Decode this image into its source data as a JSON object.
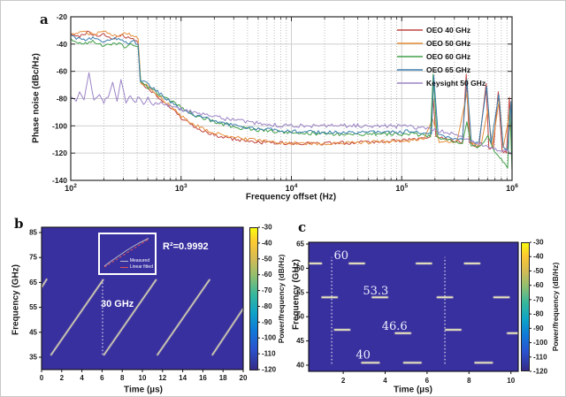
{
  "chart_data": [
    {
      "id": "a",
      "type": "line",
      "panel_label": "a",
      "xlabel": "Frequency offset (Hz)",
      "ylabel": "Phase noise (dBc/Hz)",
      "x_scale": "log",
      "xlim_log": [
        2,
        6
      ],
      "x_ticks_exp": [
        2,
        3,
        4,
        5,
        6
      ],
      "y_ticks": [
        -20,
        -40,
        -60,
        -80,
        -100,
        -120,
        -140
      ],
      "ylim": [
        -140,
        -20
      ],
      "grid": true,
      "legend_position": "top-right",
      "legend": [
        {
          "label": "OEO 40 GHz",
          "color": "#c0443f"
        },
        {
          "label": "OEO 50 GHz",
          "color": "#e78f3c"
        },
        {
          "label": "OEO 60 GHz",
          "color": "#41a048"
        },
        {
          "label": "OEO 65 GHz",
          "color": "#3c7fae"
        },
        {
          "label": "Keysight 50 GHz",
          "color": "#9c84c6"
        }
      ],
      "series": [
        {
          "name": "OEO 40 GHz",
          "color": "#c0443f",
          "noise": 1.3,
          "points": [
            [
              2.0,
              -33
            ],
            [
              2.08,
              -35
            ],
            [
              2.15,
              -31
            ],
            [
              2.22,
              -34
            ],
            [
              2.3,
              -33
            ],
            [
              2.38,
              -36
            ],
            [
              2.45,
              -33
            ],
            [
              2.52,
              -35
            ],
            [
              2.58,
              -37
            ],
            [
              2.61,
              -39
            ],
            [
              2.63,
              -67
            ],
            [
              2.7,
              -73
            ],
            [
              2.8,
              -79
            ],
            [
              2.9,
              -86
            ],
            [
              3.0,
              -94
            ],
            [
              3.1,
              -100
            ],
            [
              3.2,
              -104
            ],
            [
              3.35,
              -108
            ],
            [
              3.5,
              -110
            ],
            [
              3.7,
              -112
            ],
            [
              4.0,
              -113
            ],
            [
              4.3,
              -113
            ],
            [
              4.6,
              -112
            ],
            [
              4.9,
              -111
            ],
            [
              5.1,
              -110
            ],
            [
              5.2,
              -109
            ],
            [
              5.26,
              -108
            ],
            [
              5.285,
              -80
            ],
            [
              5.31,
              -108
            ],
            [
              5.45,
              -111
            ],
            [
              5.55,
              -112
            ],
            [
              5.585,
              -62
            ],
            [
              5.615,
              -113
            ],
            [
              5.7,
              -115
            ],
            [
              5.765,
              -69
            ],
            [
              5.79,
              -116
            ],
            [
              5.83,
              -117
            ],
            [
              5.875,
              -75
            ],
            [
              5.91,
              -118
            ],
            [
              5.95,
              -120
            ],
            [
              5.975,
              -79
            ],
            [
              6.0,
              -122
            ]
          ]
        },
        {
          "name": "OEO 50 GHz",
          "color": "#e78f3c",
          "noise": 1.3,
          "points": [
            [
              2.0,
              -33
            ],
            [
              2.1,
              -31
            ],
            [
              2.2,
              -33
            ],
            [
              2.3,
              -31
            ],
            [
              2.4,
              -34
            ],
            [
              2.5,
              -32
            ],
            [
              2.56,
              -34
            ],
            [
              2.61,
              -36
            ],
            [
              2.635,
              -68
            ],
            [
              2.72,
              -72
            ],
            [
              2.8,
              -78
            ],
            [
              2.9,
              -85
            ],
            [
              3.0,
              -93
            ],
            [
              3.12,
              -99
            ],
            [
              3.25,
              -104
            ],
            [
              3.4,
              -107
            ],
            [
              3.6,
              -110
            ],
            [
              3.8,
              -112
            ],
            [
              4.1,
              -113
            ],
            [
              4.4,
              -113
            ],
            [
              4.7,
              -112
            ],
            [
              5.0,
              -111
            ],
            [
              5.2,
              -110
            ],
            [
              5.28,
              -95
            ],
            [
              5.34,
              -111
            ],
            [
              5.5,
              -112
            ],
            [
              5.59,
              -76
            ],
            [
              5.63,
              -113
            ],
            [
              5.72,
              -114
            ],
            [
              5.78,
              -88
            ],
            [
              5.82,
              -115
            ],
            [
              5.885,
              -80
            ],
            [
              5.92,
              -116
            ],
            [
              5.975,
              -92
            ],
            [
              6.0,
              -117
            ]
          ]
        },
        {
          "name": "OEO 60 GHz",
          "color": "#41a048",
          "noise": 1.3,
          "points": [
            [
              2.0,
              -37
            ],
            [
              2.1,
              -40
            ],
            [
              2.2,
              -38
            ],
            [
              2.3,
              -41
            ],
            [
              2.4,
              -39
            ],
            [
              2.5,
              -42
            ],
            [
              2.56,
              -40
            ],
            [
              2.61,
              -42
            ],
            [
              2.635,
              -69
            ],
            [
              2.75,
              -74
            ],
            [
              2.85,
              -79
            ],
            [
              2.95,
              -84
            ],
            [
              3.05,
              -89
            ],
            [
              3.15,
              -93
            ],
            [
              3.3,
              -97
            ],
            [
              3.5,
              -101
            ],
            [
              3.7,
              -103
            ],
            [
              4.0,
              -105
            ],
            [
              4.4,
              -106
            ],
            [
              4.8,
              -106
            ],
            [
              5.1,
              -106
            ],
            [
              5.2,
              -107
            ],
            [
              5.26,
              -108
            ],
            [
              5.285,
              -62
            ],
            [
              5.32,
              -109
            ],
            [
              5.45,
              -111
            ],
            [
              5.55,
              -113
            ],
            [
              5.59,
              -97
            ],
            [
              5.63,
              -114
            ],
            [
              5.7,
              -116
            ],
            [
              5.78,
              -107
            ],
            [
              5.84,
              -119
            ],
            [
              5.89,
              -123
            ],
            [
              5.93,
              -127
            ],
            [
              5.96,
              -131
            ],
            [
              5.98,
              -88
            ],
            [
              6.0,
              -133
            ]
          ]
        },
        {
          "name": "OEO 65 GHz",
          "color": "#3c7fae",
          "noise": 1.3,
          "points": [
            [
              2.0,
              -34
            ],
            [
              2.1,
              -37
            ],
            [
              2.2,
              -35
            ],
            [
              2.3,
              -38
            ],
            [
              2.4,
              -36
            ],
            [
              2.5,
              -39
            ],
            [
              2.56,
              -38
            ],
            [
              2.61,
              -40
            ],
            [
              2.63,
              -66
            ],
            [
              2.72,
              -71
            ],
            [
              2.82,
              -77
            ],
            [
              2.92,
              -83
            ],
            [
              3.02,
              -89
            ],
            [
              3.15,
              -93
            ],
            [
              3.3,
              -96
            ],
            [
              3.5,
              -100
            ],
            [
              3.7,
              -102
            ],
            [
              4.0,
              -104
            ],
            [
              4.4,
              -105
            ],
            [
              4.8,
              -105
            ],
            [
              5.1,
              -104
            ],
            [
              5.22,
              -105
            ],
            [
              5.27,
              -106
            ],
            [
              5.29,
              -63
            ],
            [
              5.33,
              -107
            ],
            [
              5.45,
              -109
            ],
            [
              5.55,
              -110
            ],
            [
              5.59,
              -66
            ],
            [
              5.63,
              -111
            ],
            [
              5.7,
              -112
            ],
            [
              5.77,
              -71
            ],
            [
              5.81,
              -113
            ],
            [
              5.88,
              -77
            ],
            [
              5.92,
              -115
            ],
            [
              5.96,
              -117
            ],
            [
              5.99,
              -82
            ],
            [
              6.0,
              -120
            ]
          ]
        },
        {
          "name": "Keysight 50 GHz",
          "color": "#9c84c6",
          "noise": 1.5,
          "points": [
            [
              2.0,
              -78
            ],
            [
              2.05,
              -82
            ],
            [
              2.08,
              -75
            ],
            [
              2.12,
              -81
            ],
            [
              2.165,
              -61
            ],
            [
              2.21,
              -82
            ],
            [
              2.26,
              -77
            ],
            [
              2.3,
              -83
            ],
            [
              2.34,
              -79
            ],
            [
              2.38,
              -68
            ],
            [
              2.42,
              -82
            ],
            [
              2.455,
              -66
            ],
            [
              2.5,
              -82
            ],
            [
              2.54,
              -78
            ],
            [
              2.58,
              -83
            ],
            [
              2.62,
              -79
            ],
            [
              2.66,
              -84
            ],
            [
              2.7,
              -80
            ],
            [
              2.75,
              -84
            ],
            [
              2.8,
              -83
            ],
            [
              2.9,
              -86
            ],
            [
              3.0,
              -88
            ],
            [
              3.1,
              -90
            ],
            [
              3.25,
              -92
            ],
            [
              3.4,
              -95
            ],
            [
              3.6,
              -97
            ],
            [
              3.8,
              -99
            ],
            [
              4.0,
              -100
            ],
            [
              4.3,
              -100
            ],
            [
              4.6,
              -100
            ],
            [
              4.9,
              -100
            ],
            [
              5.1,
              -101
            ],
            [
              5.3,
              -103
            ],
            [
              5.45,
              -106
            ],
            [
              5.6,
              -110
            ],
            [
              5.75,
              -114
            ],
            [
              5.9,
              -118
            ],
            [
              6.0,
              -120
            ]
          ]
        }
      ]
    },
    {
      "id": "b",
      "type": "heatmap",
      "panel_label": "b",
      "xlabel": "Time (µs)",
      "ylabel": "Frequency (GHz)",
      "x_ticks": [
        0,
        2,
        4,
        6,
        8,
        10,
        12,
        14,
        16,
        18,
        20
      ],
      "y_ticks": [
        35,
        45,
        55,
        65,
        75,
        85
      ],
      "xlim": [
        0,
        20
      ],
      "ylim": [
        30,
        87
      ],
      "background_color": "#39309f",
      "trace_color": "#d5d1b2",
      "annotation": "30 GHz",
      "chirps": [
        {
          "x1": 0,
          "y1": 63,
          "x2": 0.5,
          "y2": 66.2
        },
        {
          "x1": 0.95,
          "y1": 36,
          "x2": 6.1,
          "y2": 66
        },
        {
          "x1": 6.2,
          "y1": 36,
          "x2": 11.35,
          "y2": 66
        },
        {
          "x1": 11.5,
          "y1": 36,
          "x2": 16.65,
          "y2": 66
        },
        {
          "x1": 16.95,
          "y1": 36,
          "x2": 20,
          "y2": 54.5
        }
      ],
      "dashed_lines": [
        {
          "x": 6.05,
          "y1": 36,
          "y2": 66
        }
      ],
      "inset": {
        "r2": "R²=0.9992",
        "legend": [
          {
            "label": "Measured",
            "color": "#b9bac8"
          },
          {
            "label": "Linear fitted",
            "color": "#e05252"
          }
        ]
      },
      "colorbar": {
        "ticks": [
          -30,
          -40,
          -50,
          -60,
          -70,
          -80,
          -90,
          -100,
          -110,
          -120
        ],
        "label": "Power/frequency (dB/Hz)"
      }
    },
    {
      "id": "c",
      "type": "heatmap",
      "panel_label": "c",
      "xlabel": "Time (µs)",
      "ylabel": "Frequency (GHz)",
      "x_ticks": [
        2,
        4,
        6,
        8,
        10
      ],
      "y_ticks": [
        40,
        45,
        50,
        55,
        60,
        65
      ],
      "xlim": [
        0.35,
        10.35
      ],
      "ylim": [
        38.7,
        65.4
      ],
      "background_color": "#39309f",
      "trace_color": "#e6e2bd",
      "segments": [
        {
          "f": 61,
          "spans": [
            [
              0.35,
              0.95
            ],
            [
              2.3,
              3.0
            ],
            [
              5.5,
              6.2
            ],
            [
              7.8,
              8.5
            ]
          ]
        },
        {
          "f": 54,
          "spans": [
            [
              1.0,
              1.7
            ],
            [
              3.4,
              4.1
            ],
            [
              6.5,
              7.2
            ],
            [
              9.2,
              9.9
            ]
          ]
        },
        {
          "f": 47.3,
          "spans": [
            [
              1.6,
              2.3
            ],
            [
              6.9,
              7.6
            ]
          ]
        },
        {
          "f": 46.6,
          "spans": [
            [
              4.5,
              5.2
            ],
            [
              9.85,
              10.35
            ]
          ]
        },
        {
          "f": 40.5,
          "spans": [
            [
              2.9,
              3.7
            ],
            [
              4.9,
              5.7
            ],
            [
              8.3,
              9.1
            ]
          ]
        }
      ],
      "freq_labels": [
        {
          "text": "60",
          "x": 1.9,
          "y": 62.6
        },
        {
          "text": "53.3",
          "x": 3.55,
          "y": 55.3
        },
        {
          "text": "46.6",
          "x": 4.45,
          "y": 48.0
        },
        {
          "text": "40",
          "x": 2.95,
          "y": 42.1
        }
      ],
      "dashed_lines": [
        {
          "x": 1.45,
          "y1": 40.3,
          "y2": 62.3
        },
        {
          "x": 6.85,
          "y1": 40.3,
          "y2": 62.3
        }
      ],
      "colorbar": {
        "ticks": [
          -30,
          -40,
          -50,
          -60,
          -70,
          -80,
          -90,
          -100,
          -110,
          -120
        ],
        "label": "Power/frequency (dB/Hz)"
      }
    }
  ]
}
